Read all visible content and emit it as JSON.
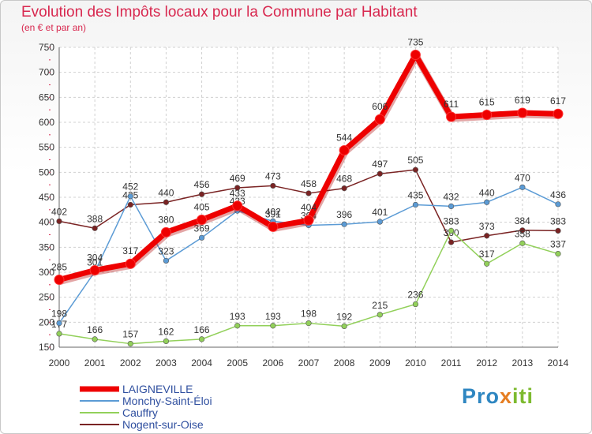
{
  "title": "Evolution des Impôts locaux pour la Commune par Habitant",
  "subtitle": "(en € et par an)",
  "logo": {
    "part1": "Pro",
    "part2": "x",
    "part3": "iti"
  },
  "chart_data": {
    "type": "line",
    "x": [
      "2000",
      "2001",
      "2002",
      "2003",
      "2004",
      "2005",
      "2006",
      "2007",
      "2008",
      "2009",
      "2010",
      "2011",
      "2012",
      "2013",
      "2014"
    ],
    "yticks": [
      150,
      200,
      250,
      300,
      350,
      400,
      450,
      500,
      550,
      600,
      650,
      700,
      750
    ],
    "ylim": [
      150,
      750
    ],
    "grid": true,
    "legend_position": "bottom-left",
    "series": [
      {
        "name": "Nogent-sur-Oise",
        "color": "#7a2323",
        "values": [
          402,
          388,
          435,
          440,
          456,
          469,
          473,
          458,
          468,
          497,
          505,
          360,
          373,
          384,
          383
        ]
      },
      {
        "name": "Cauffry",
        "color": "#92d05a",
        "values": [
          177,
          166,
          157,
          162,
          166,
          193,
          193,
          198,
          192,
          215,
          236,
          383,
          317,
          358,
          337
        ]
      },
      {
        "name": "Monchy-Saint-Éloi",
        "color": "#5b9bd5",
        "values": [
          198,
          301,
          452,
          323,
          369,
          423,
          402,
          394,
          396,
          401,
          435,
          432,
          440,
          470,
          436
        ]
      },
      {
        "name": "LAIGNEVILLE",
        "color": "#ee0000",
        "bold": true,
        "values": [
          285,
          304,
          317,
          380,
          405,
          433,
          391,
          404,
          544,
          606,
          735,
          611,
          615,
          619,
          617
        ]
      }
    ],
    "legend_order": [
      "LAIGNEVILLE",
      "Monchy-Saint-Éloi",
      "Cauffry",
      "Nogent-sur-Oise"
    ]
  }
}
